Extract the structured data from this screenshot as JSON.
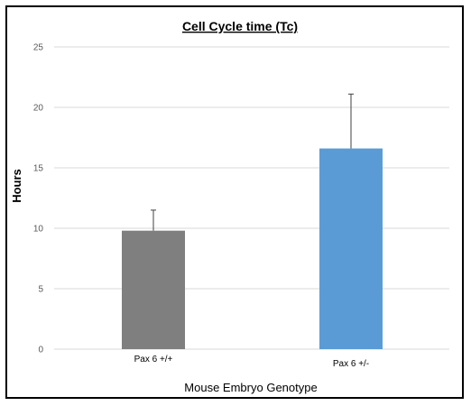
{
  "chart_data": {
    "type": "bar",
    "title": "Cell Cycle time (Tc)",
    "xlabel": "Mouse Embryo Genotype",
    "ylabel": "Hours",
    "categories": [
      "Pax 6 +/+",
      "Pax 6 +/-"
    ],
    "values": [
      9.8,
      16.6
    ],
    "error_plus": [
      1.7,
      4.5
    ],
    "bar_colors": [
      "#7f7f7f",
      "#5b9bd5"
    ],
    "ylim": [
      0,
      25
    ],
    "yticks": [
      0,
      5,
      10,
      15,
      20,
      25
    ],
    "ytick_labels": [
      "0",
      "5",
      "10",
      "15",
      "20",
      "25"
    ],
    "grid": true,
    "legend": "none"
  }
}
